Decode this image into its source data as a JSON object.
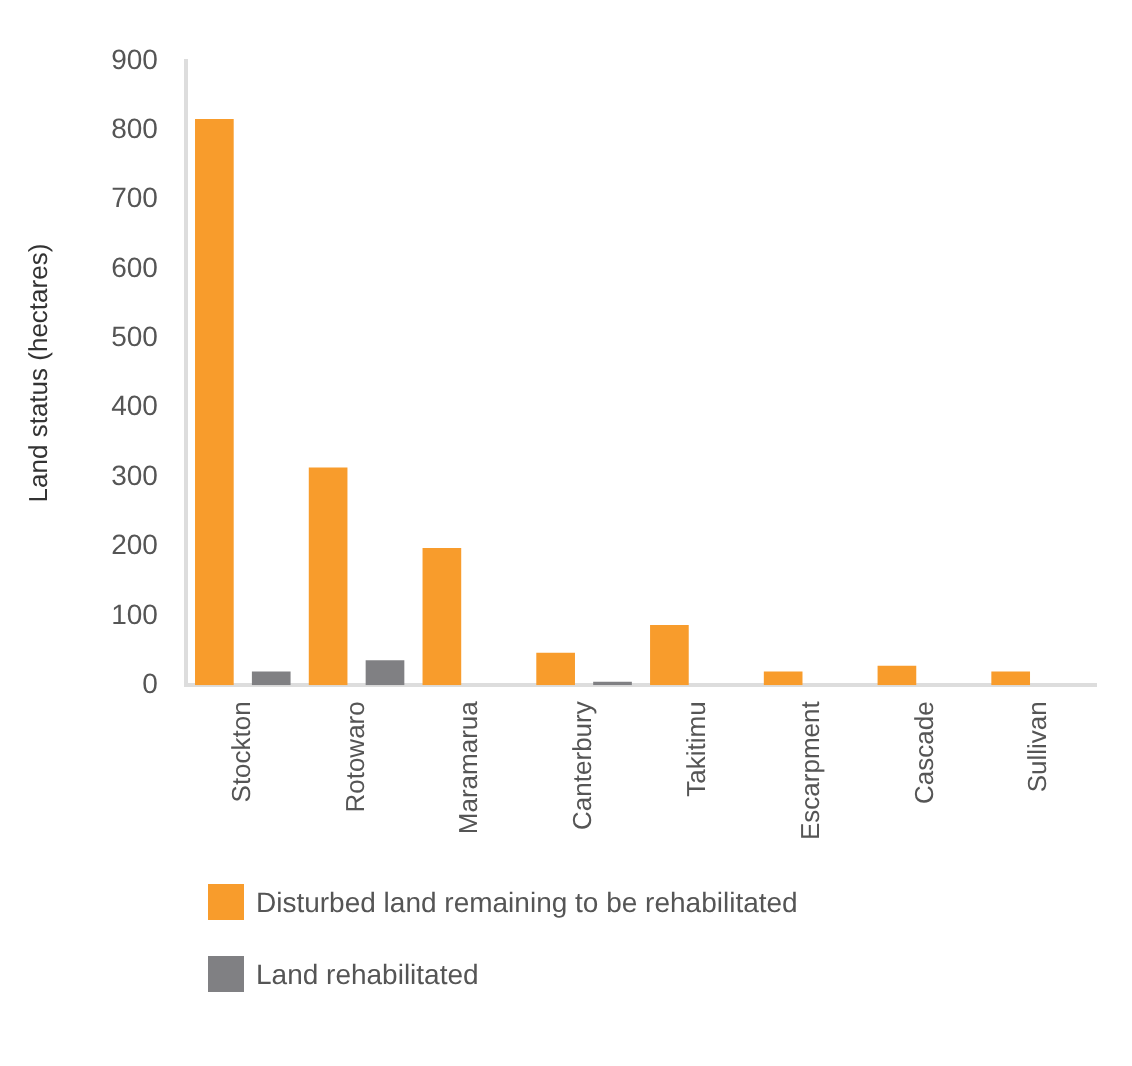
{
  "chart_data": {
    "type": "bar",
    "ylabel": "Land status (hectares)",
    "categories": [
      "Stockton",
      "Rotowaro",
      "Maramarua",
      "Canterbury",
      "Takitimu",
      "Escarpment",
      "Cascade",
      "Sullivan"
    ],
    "series": [
      {
        "name": "Disturbed land remaining to be rehabilitated",
        "color": "#f89c2c",
        "values": [
          816,
          314,
          198,
          47,
          87,
          20,
          28,
          20
        ]
      },
      {
        "name": "Land rehabilitated",
        "color": "#808083",
        "values": [
          20,
          36,
          null,
          5,
          null,
          null,
          null,
          null
        ]
      }
    ],
    "ylim": [
      0,
      900
    ],
    "yticks": [
      0,
      100,
      200,
      300,
      400,
      500,
      600,
      700,
      800,
      900
    ],
    "grid": false,
    "legend": "bottom left"
  }
}
